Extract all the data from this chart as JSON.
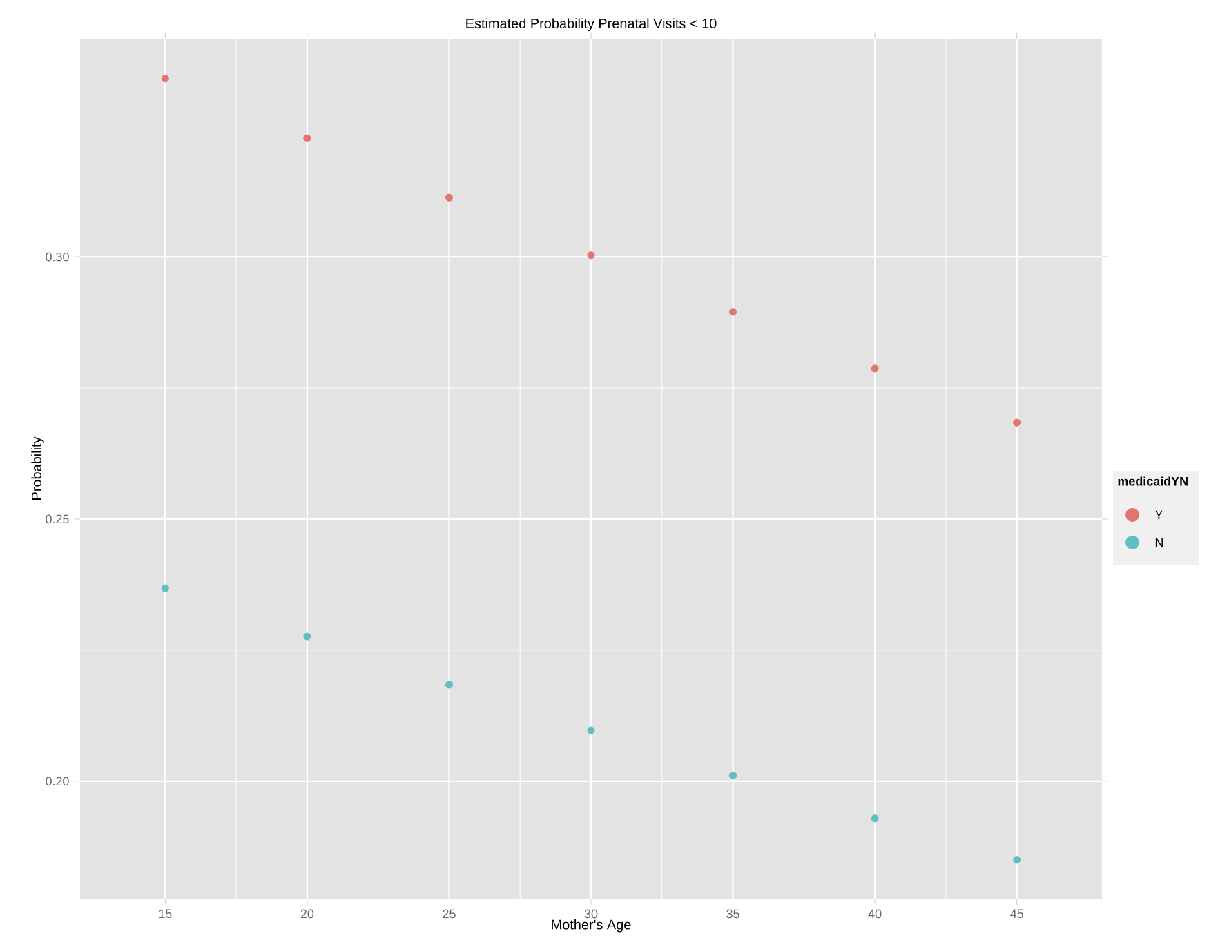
{
  "chart_data": {
    "type": "scatter",
    "title": "Estimated  Probability Prenatal Visits < 10",
    "xlabel": "Mother's Age",
    "ylabel": "Probability",
    "legend_title": "medicaidYN",
    "x": [
      15,
      20,
      25,
      30,
      35,
      40,
      45
    ],
    "series": [
      {
        "name": "Y",
        "color": "#e0766d",
        "values": [
          0.334,
          0.3226,
          0.3113,
          0.3003,
          0.2895,
          0.2787,
          0.2684
        ]
      },
      {
        "name": "N",
        "color": "#5fbfc5",
        "values": [
          0.2368,
          0.2276,
          0.2184,
          0.2097,
          0.2011,
          0.1929,
          0.185
        ]
      }
    ],
    "xlim": [
      12,
      48
    ],
    "ylim": [
      0.1776,
      0.3416
    ],
    "xticks": [
      15,
      20,
      25,
      30,
      35,
      40,
      45
    ],
    "yticks": [
      {
        "value": 0.2,
        "label": "0.20"
      },
      {
        "value": 0.25,
        "label": "0.25"
      },
      {
        "value": 0.3,
        "label": "0.30"
      }
    ],
    "grid": true,
    "legend": "right"
  }
}
